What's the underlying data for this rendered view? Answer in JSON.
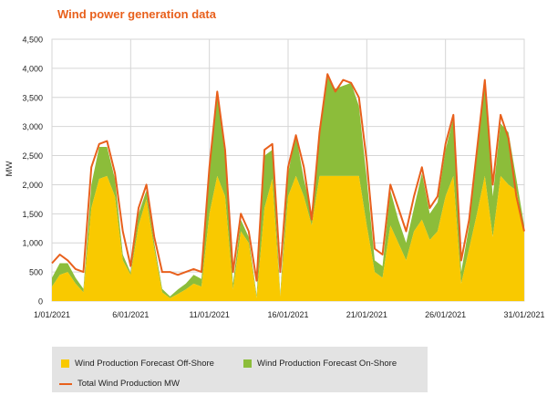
{
  "chart_data": {
    "type": "area",
    "title": "Wind power generation data",
    "xlabel": "",
    "ylabel": "MW",
    "ylim": [
      0,
      4500
    ],
    "yticks": [
      "0",
      "500",
      "1,000",
      "1,500",
      "2,000",
      "2,500",
      "3,000",
      "3,500",
      "4,000",
      "4,500"
    ],
    "xticks": [
      "1/01/2021",
      "6/01/2021",
      "11/01/2021",
      "16/01/2021",
      "21/01/2021",
      "26/01/2021",
      "31/01/2021"
    ],
    "xlim": [
      "2021-01-01",
      "2021-01-31"
    ],
    "grid": true,
    "legend_position": "bottom",
    "colors": {
      "offshore": "#f9c900",
      "onshore": "#8cbd3a",
      "total": "#e8601c"
    },
    "x": [
      "2021-01-01",
      "2021-01-01 12:00",
      "2021-01-02",
      "2021-01-02 12:00",
      "2021-01-03",
      "2021-01-03 12:00",
      "2021-01-04",
      "2021-01-04 12:00",
      "2021-01-05",
      "2021-01-05 12:00",
      "2021-01-06",
      "2021-01-06 12:00",
      "2021-01-07",
      "2021-01-07 12:00",
      "2021-01-08",
      "2021-01-08 12:00",
      "2021-01-09",
      "2021-01-09 12:00",
      "2021-01-10",
      "2021-01-10 12:00",
      "2021-01-11",
      "2021-01-11 12:00",
      "2021-01-12",
      "2021-01-12 12:00",
      "2021-01-13",
      "2021-01-13 12:00",
      "2021-01-14",
      "2021-01-14 12:00",
      "2021-01-15",
      "2021-01-15 12:00",
      "2021-01-16",
      "2021-01-16 12:00",
      "2021-01-17",
      "2021-01-17 12:00",
      "2021-01-18",
      "2021-01-18 12:00",
      "2021-01-19",
      "2021-01-19 12:00",
      "2021-01-20",
      "2021-01-20 12:00",
      "2021-01-21",
      "2021-01-21 12:00",
      "2021-01-22",
      "2021-01-22 12:00",
      "2021-01-23",
      "2021-01-23 12:00",
      "2021-01-24",
      "2021-01-24 12:00",
      "2021-01-25",
      "2021-01-25 12:00",
      "2021-01-26",
      "2021-01-26 12:00",
      "2021-01-27",
      "2021-01-27 12:00",
      "2021-01-28",
      "2021-01-28 12:00",
      "2021-01-29",
      "2021-01-29 12:00",
      "2021-01-30",
      "2021-01-30 12:00",
      "2021-01-31"
    ],
    "series": [
      {
        "name": "Wind Production Forecast Off-Shore",
        "values": [
          250,
          450,
          500,
          300,
          150,
          1600,
          2100,
          2150,
          1800,
          700,
          450,
          1300,
          1750,
          900,
          150,
          50,
          120,
          200,
          300,
          250,
          1500,
          2150,
          1800,
          200,
          1200,
          1000,
          50,
          1600,
          2100,
          80,
          1800,
          2150,
          1800,
          1300,
          2150,
          2150,
          2150,
          2150,
          2150,
          2150,
          1300,
          500,
          400,
          1300,
          1000,
          700,
          1200,
          1400,
          1050,
          1200,
          1800,
          2150,
          300,
          900,
          1500,
          2150,
          1100,
          2150,
          2000,
          1900,
          1200
        ]
      },
      {
        "name": "Wind Production Forecast On-Shore",
        "values": [
          150,
          200,
          150,
          100,
          60,
          400,
          550,
          500,
          300,
          100,
          40,
          200,
          150,
          100,
          60,
          30,
          80,
          100,
          150,
          130,
          700,
          1400,
          700,
          100,
          200,
          100,
          50,
          900,
          500,
          50,
          400,
          700,
          300,
          200,
          700,
          1700,
          1500,
          1550,
          1600,
          1200,
          800,
          200,
          200,
          600,
          400,
          300,
          400,
          800,
          450,
          500,
          800,
          1000,
          200,
          400,
          1000,
          1600,
          700,
          900,
          900,
          200,
          100
        ]
      },
      {
        "name": "Total Wind Production MW",
        "values": [
          650,
          800,
          700,
          550,
          500,
          2300,
          2700,
          2750,
          2200,
          1200,
          600,
          1600,
          2000,
          1100,
          500,
          500,
          450,
          500,
          550,
          500,
          2300,
          3600,
          2600,
          500,
          1500,
          1200,
          350,
          2600,
          2700,
          500,
          2300,
          2850,
          2300,
          1400,
          2900,
          3900,
          3600,
          3800,
          3750,
          3500,
          2400,
          900,
          800,
          2000,
          1600,
          1200,
          1800,
          2300,
          1600,
          1800,
          2700,
          3200,
          700,
          1400,
          2600,
          3800,
          2000,
          3200,
          2800,
          1800,
          1200
        ]
      }
    ]
  }
}
